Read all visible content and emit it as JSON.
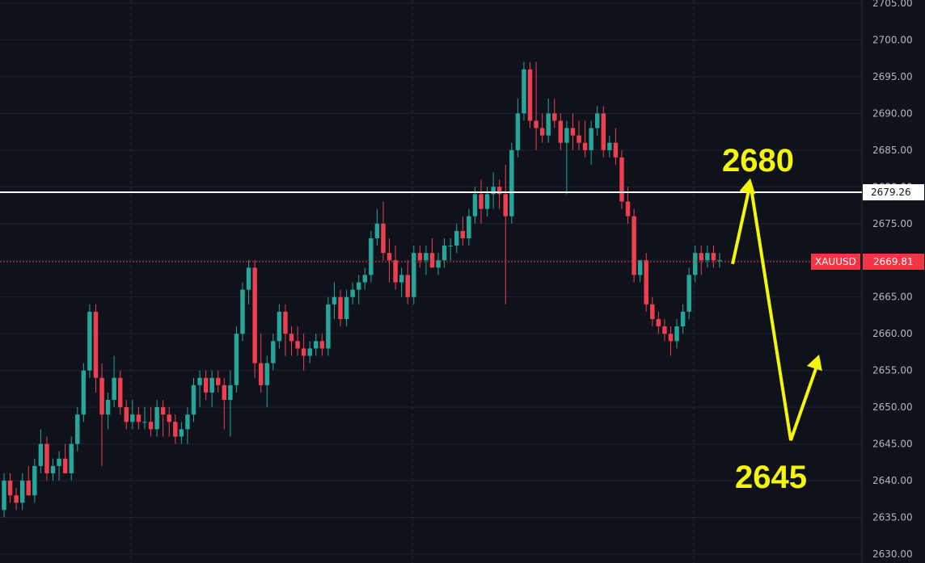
{
  "chart_data": {
    "type": "candlestick",
    "symbol": "XAUUSD",
    "last_price": "2669.81",
    "ylim": [
      2630,
      2705
    ],
    "y_ticks": [
      "2630.00",
      "2635.00",
      "2640.00",
      "2645.00",
      "2650.00",
      "2655.00",
      "2660.00",
      "2665.00",
      "2670.00",
      "2675.00",
      "2680.00",
      "2685.00",
      "2690.00",
      "2695.00",
      "2700.00",
      "2705.00"
    ],
    "grid": true,
    "horizontal_line": {
      "value": 2679.26,
      "label": "2679.26"
    },
    "annotations": [
      {
        "text": "2680",
        "value": 2680
      },
      {
        "text": "2645",
        "value": 2645
      }
    ],
    "projected_path": [
      2669.5,
      2680.5,
      2645.5,
      2656.5
    ],
    "candles": [
      [
        2636,
        2641,
        2635,
        2640
      ],
      [
        2640,
        2641,
        2637,
        2638
      ],
      [
        2638,
        2639,
        2636,
        2637
      ],
      [
        2637,
        2641,
        2636,
        2640
      ],
      [
        2640,
        2642,
        2638,
        2638
      ],
      [
        2638,
        2643,
        2637,
        2642
      ],
      [
        2642,
        2647,
        2641,
        2645
      ],
      [
        2645,
        2646,
        2640,
        2641
      ],
      [
        2641,
        2643,
        2640,
        2642
      ],
      [
        2642,
        2644,
        2640,
        2643
      ],
      [
        2643,
        2645,
        2641,
        2641
      ],
      [
        2641,
        2646,
        2640,
        2645
      ],
      [
        2645,
        2650,
        2644,
        2649
      ],
      [
        2649,
        2656,
        2648,
        2655
      ],
      [
        2655,
        2664,
        2654,
        2663
      ],
      [
        2663,
        2664,
        2652,
        2654
      ],
      [
        2654,
        2656,
        2642,
        2649
      ],
      [
        2649,
        2652,
        2647,
        2651
      ],
      [
        2651,
        2657,
        2650,
        2654
      ],
      [
        2654,
        2655,
        2649,
        2650
      ],
      [
        2650,
        2651,
        2647,
        2648
      ],
      [
        2648,
        2651,
        2647,
        2649
      ],
      [
        2649,
        2650,
        2647,
        2648
      ],
      [
        2648,
        2650,
        2647,
        2648
      ],
      [
        2648,
        2650,
        2646,
        2647
      ],
      [
        2647,
        2651,
        2646,
        2650
      ],
      [
        2650,
        2651,
        2646,
        2649
      ],
      [
        2649,
        2650,
        2646,
        2648
      ],
      [
        2648,
        2649,
        2645,
        2646
      ],
      [
        2646,
        2648,
        2645,
        2647
      ],
      [
        2647,
        2650,
        2645,
        2649
      ],
      [
        2649,
        2654,
        2648,
        2653
      ],
      [
        2653,
        2655,
        2650,
        2654
      ],
      [
        2654,
        2655,
        2651,
        2652
      ],
      [
        2652,
        2655,
        2650,
        2654
      ],
      [
        2654,
        2655,
        2652,
        2653
      ],
      [
        2653,
        2654,
        2647,
        2651
      ],
      [
        2651,
        2655,
        2646,
        2653
      ],
      [
        2653,
        2661,
        2652,
        2660
      ],
      [
        2660,
        2667,
        2659,
        2666
      ],
      [
        2666,
        2670,
        2664,
        2669
      ],
      [
        2669,
        2670,
        2654,
        2656
      ],
      [
        2656,
        2660,
        2652,
        2653
      ],
      [
        2653,
        2657,
        2650,
        2656
      ],
      [
        2656,
        2660,
        2655,
        2659
      ],
      [
        2659,
        2664,
        2658,
        2663
      ],
      [
        2663,
        2664,
        2657,
        2660
      ],
      [
        2660,
        2661,
        2657,
        2659
      ],
      [
        2659,
        2661,
        2657,
        2658
      ],
      [
        2658,
        2660,
        2655,
        2657
      ],
      [
        2657,
        2659,
        2656,
        2658
      ],
      [
        2658,
        2660,
        2657,
        2659
      ],
      [
        2659,
        2660,
        2657,
        2658
      ],
      [
        2658,
        2665,
        2657,
        2664
      ],
      [
        2664,
        2667,
        2662,
        2665
      ],
      [
        2665,
        2666,
        2661,
        2662
      ],
      [
        2662,
        2666,
        2661,
        2665
      ],
      [
        2665,
        2667,
        2664,
        2666
      ],
      [
        2666,
        2668,
        2664,
        2667
      ],
      [
        2667,
        2669,
        2666,
        2668
      ],
      [
        2668,
        2674,
        2667,
        2673
      ],
      [
        2673,
        2677,
        2672,
        2675
      ],
      [
        2675,
        2678,
        2670,
        2671
      ],
      [
        2671,
        2673,
        2667,
        2670
      ],
      [
        2670,
        2672,
        2666,
        2667
      ],
      [
        2667,
        2669,
        2665,
        2668
      ],
      [
        2668,
        2670,
        2664,
        2665
      ],
      [
        2665,
        2672,
        2664,
        2671
      ],
      [
        2671,
        2672,
        2669,
        2670
      ],
      [
        2670,
        2672,
        2668,
        2671
      ],
      [
        2671,
        2673,
        2669,
        2669
      ],
      [
        2669,
        2671,
        2668,
        2670
      ],
      [
        2670,
        2673,
        2669,
        2672
      ],
      [
        2672,
        2673,
        2670,
        2672
      ],
      [
        2672,
        2675,
        2671,
        2674
      ],
      [
        2674,
        2676,
        2672,
        2673
      ],
      [
        2673,
        2677,
        2672,
        2676
      ],
      [
        2676,
        2680,
        2675,
        2679
      ],
      [
        2679,
        2681,
        2675,
        2677
      ],
      [
        2677,
        2680,
        2676,
        2679
      ],
      [
        2679,
        2682,
        2677,
        2680
      ],
      [
        2680,
        2681,
        2677,
        2679
      ],
      [
        2679,
        2683,
        2664,
        2676
      ],
      [
        2676,
        2686,
        2675,
        2685
      ],
      [
        2685,
        2692,
        2684,
        2690
      ],
      [
        2690,
        2697,
        2689,
        2696
      ],
      [
        2696,
        2697,
        2688,
        2689
      ],
      [
        2689,
        2697,
        2685,
        2688
      ],
      [
        2688,
        2690,
        2686,
        2687
      ],
      [
        2687,
        2692,
        2686,
        2690
      ],
      [
        2690,
        2692,
        2688,
        2689
      ],
      [
        2689,
        2690,
        2685,
        2686
      ],
      [
        2686,
        2689,
        2679,
        2688
      ],
      [
        2688,
        2690,
        2685,
        2687
      ],
      [
        2687,
        2689,
        2685,
        2686
      ],
      [
        2686,
        2689,
        2684,
        2685
      ],
      [
        2685,
        2689,
        2683,
        2688
      ],
      [
        2688,
        2691,
        2687,
        2690
      ],
      [
        2690,
        2691,
        2684,
        2685
      ],
      [
        2685,
        2687,
        2684,
        2686
      ],
      [
        2686,
        2688,
        2683,
        2684
      ],
      [
        2684,
        2685,
        2677,
        2678
      ],
      [
        2678,
        2680,
        2675,
        2676
      ],
      [
        2676,
        2677,
        2667,
        2668
      ],
      [
        2668,
        2670,
        2667,
        2670
      ],
      [
        2670,
        2671,
        2663,
        2664
      ],
      [
        2664,
        2665,
        2661,
        2662
      ],
      [
        2662,
        2663,
        2660,
        2661
      ],
      [
        2661,
        2662,
        2659,
        2660
      ],
      [
        2660,
        2661,
        2657,
        2659
      ],
      [
        2659,
        2662,
        2658,
        2661
      ],
      [
        2661,
        2664,
        2660,
        2663
      ],
      [
        2663,
        2669,
        2662,
        2668
      ],
      [
        2668,
        2672,
        2667,
        2671
      ],
      [
        2671,
        2672,
        2668,
        2670
      ],
      [
        2670,
        2672,
        2669,
        2671
      ],
      [
        2671,
        2672,
        2669,
        2670
      ],
      [
        2670,
        2671,
        2669,
        2670
      ]
    ]
  }
}
